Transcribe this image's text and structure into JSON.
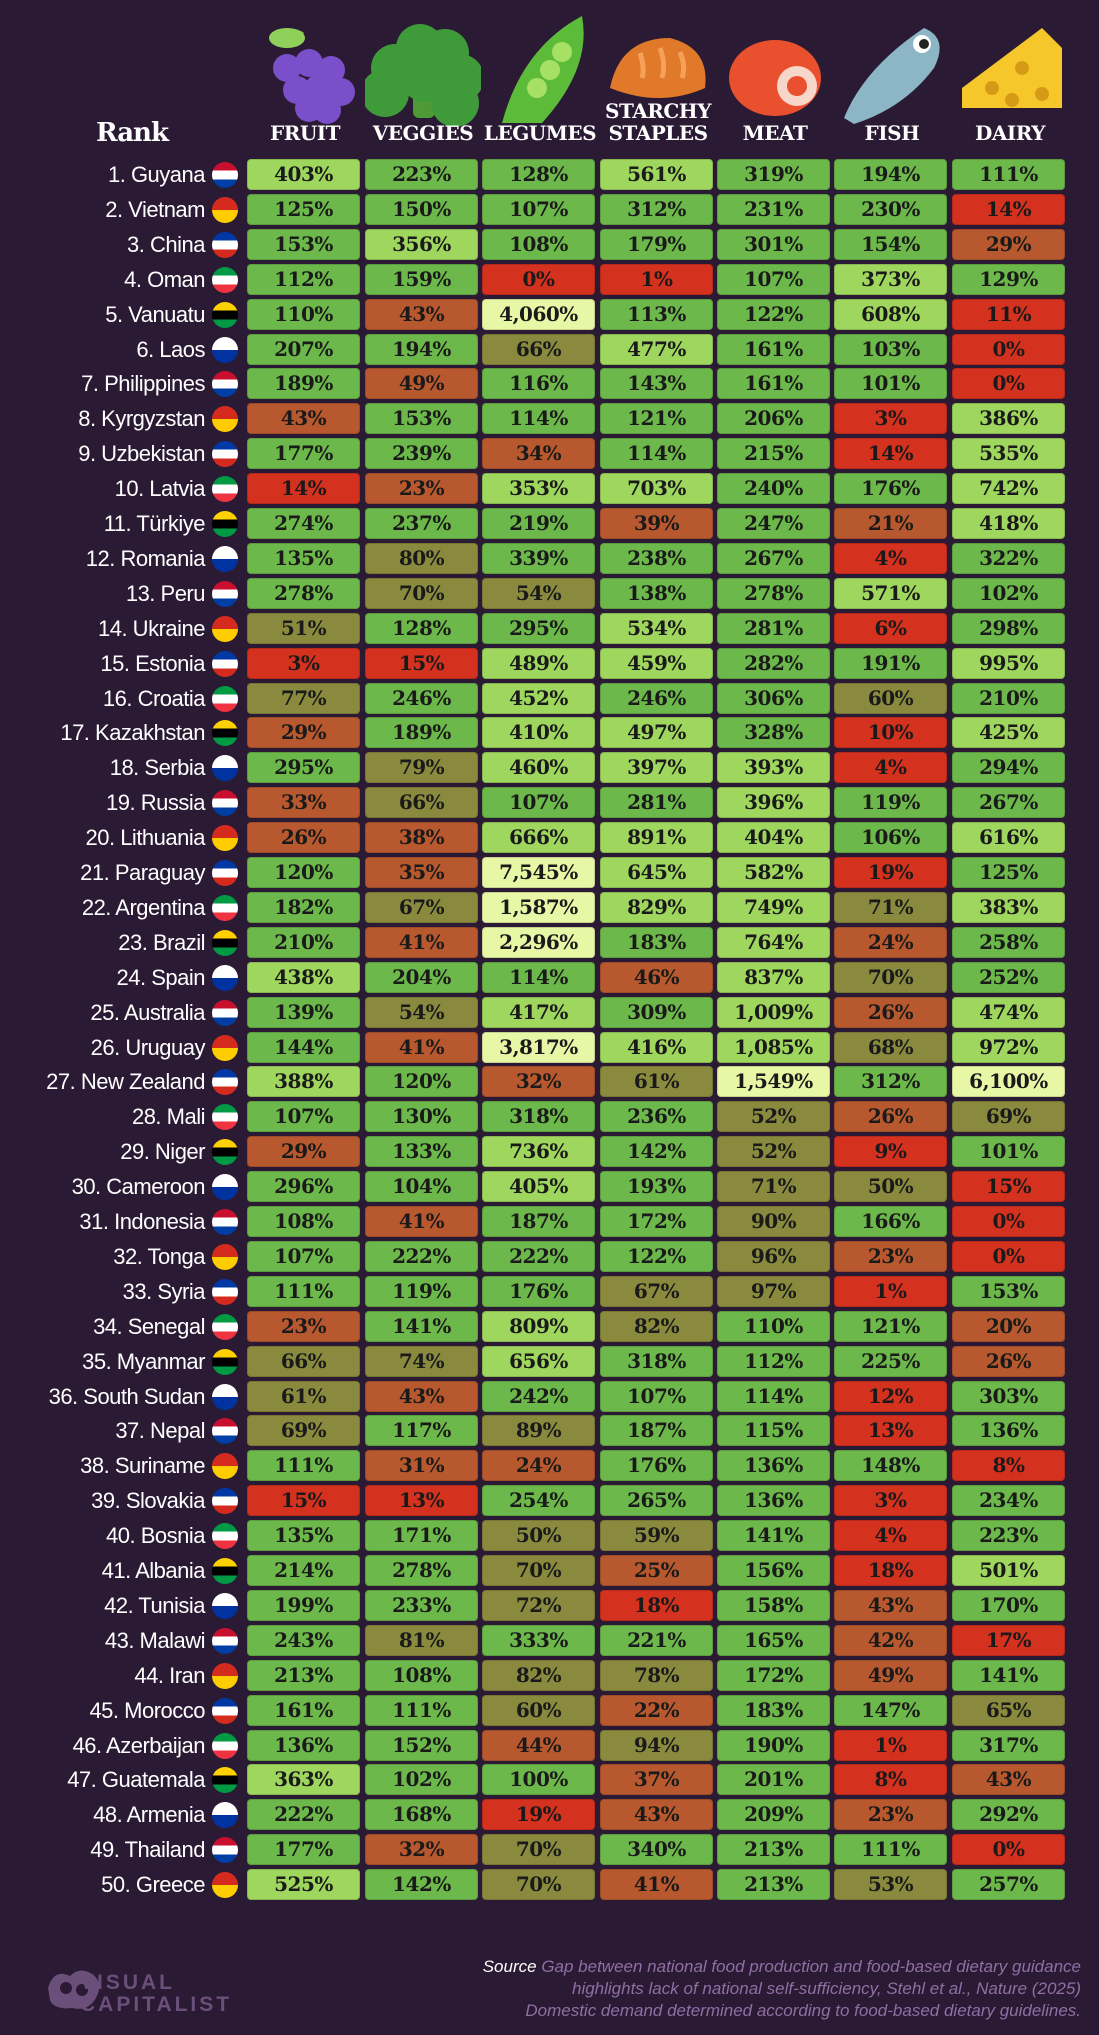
{
  "header": {
    "rank_label": "Rank",
    "columns": [
      {
        "key": "fruit",
        "line1": "",
        "line2": "FRUIT",
        "icon": "grapes-icon"
      },
      {
        "key": "veggies",
        "line1": "",
        "line2": "VEGGIES",
        "icon": "broccoli-icon"
      },
      {
        "key": "legumes",
        "line1": "",
        "line2": "LEGUMES",
        "icon": "pea-pod-icon"
      },
      {
        "key": "starchy",
        "line1": "STARCHY",
        "line2": "STAPLES",
        "icon": "bread-icon"
      },
      {
        "key": "meat",
        "line1": "",
        "line2": "MEAT",
        "icon": "meat-icon"
      },
      {
        "key": "fish",
        "line1": "",
        "line2": "FISH",
        "icon": "fish-icon"
      },
      {
        "key": "dairy",
        "line1": "",
        "line2": "DAIRY",
        "icon": "cheese-icon"
      }
    ]
  },
  "colors": {
    "background": "#2a1a33",
    "red": "#d4311f",
    "orange": "#b8582e",
    "olive": "#8a8a3e",
    "green": "#6cb84a",
    "light_green": "#9fd65e",
    "pale": "#e8f7a6"
  },
  "chart_data": {
    "type": "table",
    "columns": [
      "FRUIT",
      "VEGGIES",
      "LEGUMES",
      "STARCHY STAPLES",
      "MEAT",
      "FISH",
      "DAIRY"
    ],
    "rows": [
      {
        "rank": "1. Guyana",
        "flag": "guyana-flag-icon",
        "values": [
          "403%",
          "223%",
          "128%",
          "561%",
          "319%",
          "194%",
          "111%"
        ]
      },
      {
        "rank": "2. Vietnam",
        "flag": "vietnam-flag-icon",
        "values": [
          "125%",
          "150%",
          "107%",
          "312%",
          "231%",
          "230%",
          "14%"
        ]
      },
      {
        "rank": "3. China",
        "flag": "china-flag-icon",
        "values": [
          "153%",
          "356%",
          "108%",
          "179%",
          "301%",
          "154%",
          "29%"
        ]
      },
      {
        "rank": "4. Oman",
        "flag": "oman-flag-icon",
        "values": [
          "112%",
          "159%",
          "0%",
          "1%",
          "107%",
          "373%",
          "129%"
        ]
      },
      {
        "rank": "5. Vanuatu",
        "flag": "vanuatu-flag-icon",
        "values": [
          "110%",
          "43%",
          "4,060%",
          "113%",
          "122%",
          "608%",
          "11%"
        ]
      },
      {
        "rank": "6. Laos",
        "flag": "laos-flag-icon",
        "values": [
          "207%",
          "194%",
          "66%",
          "477%",
          "161%",
          "103%",
          "0%"
        ]
      },
      {
        "rank": "7. Philippines",
        "flag": "philippines-flag-icon",
        "values": [
          "189%",
          "49%",
          "116%",
          "143%",
          "161%",
          "101%",
          "0%"
        ]
      },
      {
        "rank": "8. Kyrgyzstan",
        "flag": "kyrgyzstan-flag-icon",
        "values": [
          "43%",
          "153%",
          "114%",
          "121%",
          "206%",
          "3%",
          "386%"
        ]
      },
      {
        "rank": "9. Uzbekistan",
        "flag": "uzbekistan-flag-icon",
        "values": [
          "177%",
          "239%",
          "34%",
          "114%",
          "215%",
          "14%",
          "535%"
        ]
      },
      {
        "rank": "10. Latvia",
        "flag": "latvia-flag-icon",
        "values": [
          "14%",
          "23%",
          "353%",
          "703%",
          "240%",
          "176%",
          "742%"
        ]
      },
      {
        "rank": "11. Türkiye",
        "flag": "turkiye-flag-icon",
        "values": [
          "274%",
          "237%",
          "219%",
          "39%",
          "247%",
          "21%",
          "418%"
        ]
      },
      {
        "rank": "12. Romania",
        "flag": "romania-flag-icon",
        "values": [
          "135%",
          "80%",
          "339%",
          "238%",
          "267%",
          "4%",
          "322%"
        ]
      },
      {
        "rank": "13. Peru",
        "flag": "peru-flag-icon",
        "values": [
          "278%",
          "70%",
          "54%",
          "138%",
          "278%",
          "571%",
          "102%"
        ]
      },
      {
        "rank": "14. Ukraine",
        "flag": "ukraine-flag-icon",
        "values": [
          "51%",
          "128%",
          "295%",
          "534%",
          "281%",
          "6%",
          "298%"
        ]
      },
      {
        "rank": "15. Estonia",
        "flag": "estonia-flag-icon",
        "values": [
          "3%",
          "15%",
          "489%",
          "459%",
          "282%",
          "191%",
          "995%"
        ]
      },
      {
        "rank": "16. Croatia",
        "flag": "croatia-flag-icon",
        "values": [
          "77%",
          "246%",
          "452%",
          "246%",
          "306%",
          "60%",
          "210%"
        ]
      },
      {
        "rank": "17. Kazakhstan",
        "flag": "kazakhstan-flag-icon",
        "values": [
          "29%",
          "189%",
          "410%",
          "497%",
          "328%",
          "10%",
          "425%"
        ]
      },
      {
        "rank": "18. Serbia",
        "flag": "serbia-flag-icon",
        "values": [
          "295%",
          "79%",
          "460%",
          "397%",
          "393%",
          "4%",
          "294%"
        ]
      },
      {
        "rank": "19. Russia",
        "flag": "russia-flag-icon",
        "values": [
          "33%",
          "66%",
          "107%",
          "281%",
          "396%",
          "119%",
          "267%"
        ]
      },
      {
        "rank": "20. Lithuania",
        "flag": "lithuania-flag-icon",
        "values": [
          "26%",
          "38%",
          "666%",
          "891%",
          "404%",
          "106%",
          "616%"
        ]
      },
      {
        "rank": "21. Paraguay",
        "flag": "paraguay-flag-icon",
        "values": [
          "120%",
          "35%",
          "7,545%",
          "645%",
          "582%",
          "19%",
          "125%"
        ]
      },
      {
        "rank": "22. Argentina",
        "flag": "argentina-flag-icon",
        "values": [
          "182%",
          "67%",
          "1,587%",
          "829%",
          "749%",
          "71%",
          "383%"
        ]
      },
      {
        "rank": "23. Brazil",
        "flag": "brazil-flag-icon",
        "values": [
          "210%",
          "41%",
          "2,296%",
          "183%",
          "764%",
          "24%",
          "258%"
        ]
      },
      {
        "rank": "24. Spain",
        "flag": "spain-flag-icon",
        "values": [
          "438%",
          "204%",
          "114%",
          "46%",
          "837%",
          "70%",
          "252%"
        ]
      },
      {
        "rank": "25. Australia",
        "flag": "australia-flag-icon",
        "values": [
          "139%",
          "54%",
          "417%",
          "309%",
          "1,009%",
          "26%",
          "474%"
        ]
      },
      {
        "rank": "26. Uruguay",
        "flag": "uruguay-flag-icon",
        "values": [
          "144%",
          "41%",
          "3,817%",
          "416%",
          "1,085%",
          "68%",
          "972%"
        ]
      },
      {
        "rank": "27. New Zealand",
        "flag": "new-zealand-flag-icon",
        "values": [
          "388%",
          "120%",
          "32%",
          "61%",
          "1,549%",
          "312%",
          "6,100%"
        ]
      },
      {
        "rank": "28. Mali",
        "flag": "mali-flag-icon",
        "values": [
          "107%",
          "130%",
          "318%",
          "236%",
          "52%",
          "26%",
          "69%"
        ]
      },
      {
        "rank": "29. Niger",
        "flag": "niger-flag-icon",
        "values": [
          "29%",
          "133%",
          "736%",
          "142%",
          "52%",
          "9%",
          "101%"
        ]
      },
      {
        "rank": "30. Cameroon",
        "flag": "cameroon-flag-icon",
        "values": [
          "296%",
          "104%",
          "405%",
          "193%",
          "71%",
          "50%",
          "15%"
        ]
      },
      {
        "rank": "31. Indonesia",
        "flag": "indonesia-flag-icon",
        "values": [
          "108%",
          "41%",
          "187%",
          "172%",
          "90%",
          "166%",
          "0%"
        ]
      },
      {
        "rank": "32. Tonga",
        "flag": "tonga-flag-icon",
        "values": [
          "107%",
          "222%",
          "222%",
          "122%",
          "96%",
          "23%",
          "0%"
        ]
      },
      {
        "rank": "33. Syria",
        "flag": "syria-flag-icon",
        "values": [
          "111%",
          "119%",
          "176%",
          "67%",
          "97%",
          "1%",
          "153%"
        ]
      },
      {
        "rank": "34. Senegal",
        "flag": "senegal-flag-icon",
        "values": [
          "23%",
          "141%",
          "809%",
          "82%",
          "110%",
          "121%",
          "20%"
        ]
      },
      {
        "rank": "35. Myanmar",
        "flag": "myanmar-flag-icon",
        "values": [
          "66%",
          "74%",
          "656%",
          "318%",
          "112%",
          "225%",
          "26%"
        ]
      },
      {
        "rank": "36. South Sudan",
        "flag": "south-sudan-flag-icon",
        "values": [
          "61%",
          "43%",
          "242%",
          "107%",
          "114%",
          "12%",
          "303%"
        ]
      },
      {
        "rank": "37. Nepal",
        "flag": "nepal-flag-icon",
        "values": [
          "69%",
          "117%",
          "89%",
          "187%",
          "115%",
          "13%",
          "136%"
        ]
      },
      {
        "rank": "38. Suriname",
        "flag": "suriname-flag-icon",
        "values": [
          "111%",
          "31%",
          "24%",
          "176%",
          "136%",
          "148%",
          "8%"
        ]
      },
      {
        "rank": "39. Slovakia",
        "flag": "slovakia-flag-icon",
        "values": [
          "15%",
          "13%",
          "254%",
          "265%",
          "136%",
          "3%",
          "234%"
        ]
      },
      {
        "rank": "40. Bosnia",
        "flag": "bosnia-flag-icon",
        "values": [
          "135%",
          "171%",
          "50%",
          "59%",
          "141%",
          "4%",
          "223%"
        ]
      },
      {
        "rank": "41. Albania",
        "flag": "albania-flag-icon",
        "values": [
          "214%",
          "278%",
          "70%",
          "25%",
          "156%",
          "18%",
          "501%"
        ]
      },
      {
        "rank": "42. Tunisia",
        "flag": "tunisia-flag-icon",
        "values": [
          "199%",
          "233%",
          "72%",
          "18%",
          "158%",
          "43%",
          "170%"
        ]
      },
      {
        "rank": "43. Malawi",
        "flag": "malawi-flag-icon",
        "values": [
          "243%",
          "81%",
          "333%",
          "221%",
          "165%",
          "42%",
          "17%"
        ]
      },
      {
        "rank": "44. Iran",
        "flag": "iran-flag-icon",
        "values": [
          "213%",
          "108%",
          "82%",
          "78%",
          "172%",
          "49%",
          "141%"
        ]
      },
      {
        "rank": "45. Morocco",
        "flag": "morocco-flag-icon",
        "values": [
          "161%",
          "111%",
          "60%",
          "22%",
          "183%",
          "147%",
          "65%"
        ]
      },
      {
        "rank": "46. Azerbaijan",
        "flag": "azerbaijan-flag-icon",
        "values": [
          "136%",
          "152%",
          "44%",
          "94%",
          "190%",
          "1%",
          "317%"
        ]
      },
      {
        "rank": "47. Guatemala",
        "flag": "guatemala-flag-icon",
        "values": [
          "363%",
          "102%",
          "100%",
          "37%",
          "201%",
          "8%",
          "43%"
        ]
      },
      {
        "rank": "48. Armenia",
        "flag": "armenia-flag-icon",
        "values": [
          "222%",
          "168%",
          "19%",
          "43%",
          "209%",
          "23%",
          "292%"
        ]
      },
      {
        "rank": "49. Thailand",
        "flag": "thailand-flag-icon",
        "values": [
          "177%",
          "32%",
          "70%",
          "340%",
          "213%",
          "111%",
          "0%"
        ]
      },
      {
        "rank": "50. Greece",
        "flag": "greece-flag-icon",
        "values": [
          "525%",
          "142%",
          "70%",
          "41%",
          "213%",
          "53%",
          "257%"
        ]
      }
    ]
  },
  "footer": {
    "logo_line1": "VISUAL",
    "logo_line2": "CAPITALIST",
    "source_label": "Source",
    "source_line1": "Gap between national food production and food-based dietary guidance",
    "source_line2": "highlights lack of national self-sufficiency, Stehl et al., Nature (2025)",
    "source_line3": "Domestic demand determined according to food-based dietary guidelines."
  }
}
